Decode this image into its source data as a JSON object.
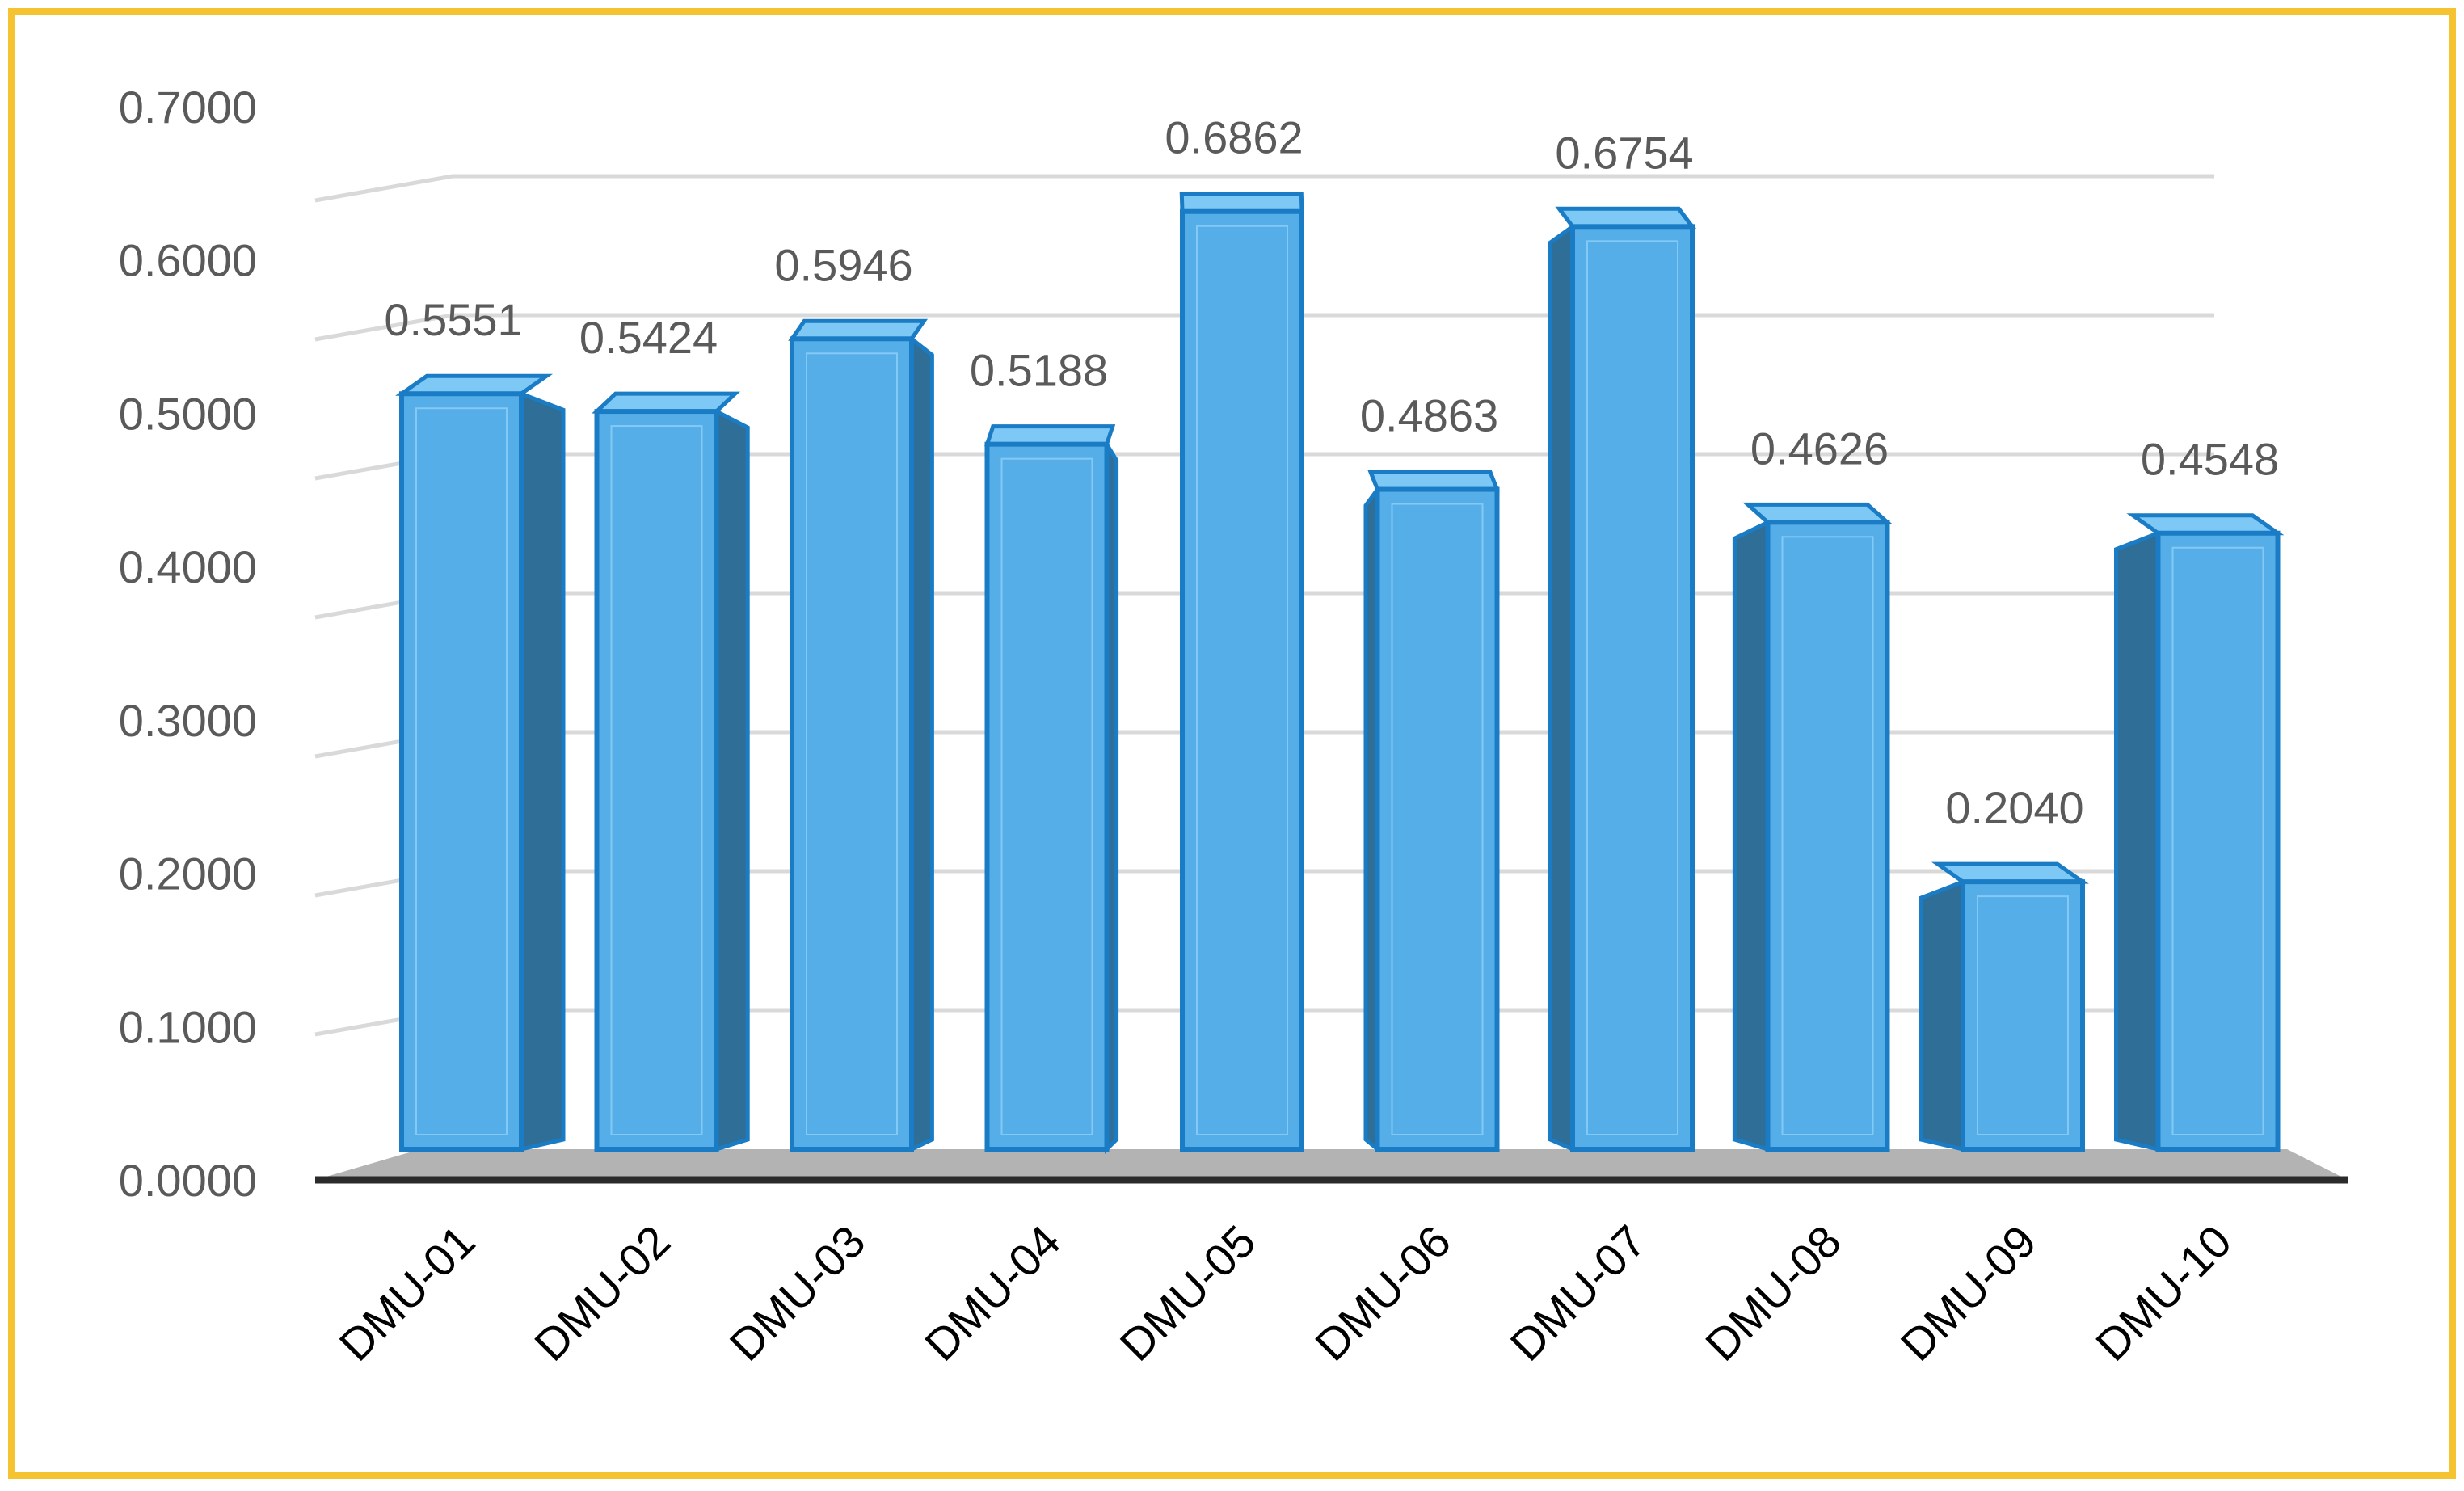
{
  "colors": {
    "frame": "#F5C330",
    "bar_front": "#56AEE8",
    "bar_top": "#7EC8F6",
    "bar_side": "#2F6E96",
    "bar_edge": "#1A7CC4",
    "floor": "#B3B3B3",
    "axis": "#2B2B2B",
    "grid": "#D9D9D9",
    "text": "#5A5A5A"
  },
  "chart_data": {
    "type": "bar",
    "style": "3d-clustered-column",
    "categories": [
      "DMU-01",
      "DMU-02",
      "DMU-03",
      "DMU-04",
      "DMU-05",
      "DMU-06",
      "DMU-07",
      "DMU-08",
      "DMU-09",
      "DMU-10"
    ],
    "values": [
      0.5551,
      0.5424,
      0.5946,
      0.5188,
      0.6862,
      0.4863,
      0.6754,
      0.4626,
      0.204,
      0.4548
    ],
    "value_labels": [
      "0.5551",
      "0.5424",
      "0.5946",
      "0.5188",
      "0.6862",
      "0.4863",
      "0.6754",
      "0.4626",
      "0.2040",
      "0.4548"
    ],
    "y_ticks": [
      {
        "value": 0.0,
        "label": "0.0000"
      },
      {
        "value": 0.1,
        "label": "0.1000"
      },
      {
        "value": 0.2,
        "label": "0.2000"
      },
      {
        "value": 0.3,
        "label": "0.3000"
      },
      {
        "value": 0.4,
        "label": "0.4000"
      },
      {
        "value": 0.5,
        "label": "0.5000"
      },
      {
        "value": 0.6,
        "label": "0.6000"
      },
      {
        "value": 0.7,
        "label": "0.7000"
      }
    ],
    "ylim": [
      0,
      0.7
    ],
    "title": "",
    "xlabel": "",
    "ylabel": "",
    "grid": true,
    "legend": "none",
    "x_tick_rotation": -45
  }
}
